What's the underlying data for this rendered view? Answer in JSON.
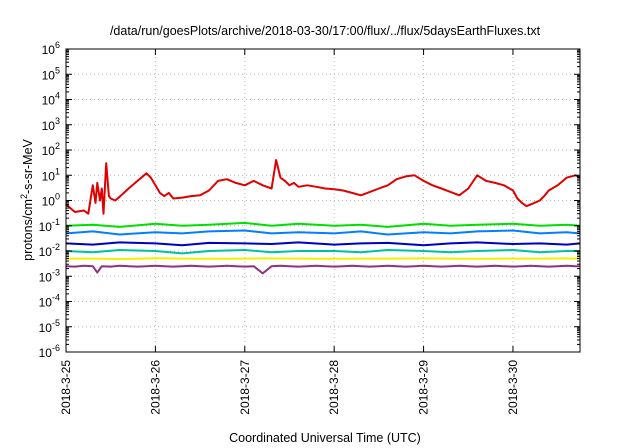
{
  "chart_data": {
    "type": "line",
    "title": "/data/run/goesPlots/archive/2018-03-30/17:00/flux/../flux/5daysEarthFluxes.txt",
    "xlabel": "Coordinated Universal Time (UTC)",
    "ylabel": "protons/cm²-s-sr-MeV",
    "ylabel_parts": {
      "pre": "protons/cm",
      "sup": "2",
      "post": "-s-sr-MeV"
    },
    "yscale": "log",
    "ylim": [
      1e-06,
      1000000.0
    ],
    "xlim_days": [
      0,
      5.75
    ],
    "grid": true,
    "legend": "none",
    "x_ticks": [
      {
        "day": 0,
        "label": "2018-3-25"
      },
      {
        "day": 1,
        "label": "2018-3-26"
      },
      {
        "day": 2,
        "label": "2018-3-27"
      },
      {
        "day": 3,
        "label": "2018-3-28"
      },
      {
        "day": 4,
        "label": "2018-3-29"
      },
      {
        "day": 5,
        "label": "2018-3-30"
      }
    ],
    "y_ticks": [
      {
        "exp": -6,
        "base": "10",
        "sup": "-6"
      },
      {
        "exp": -5,
        "base": "10",
        "sup": "-5"
      },
      {
        "exp": -4,
        "base": "10",
        "sup": "-4"
      },
      {
        "exp": -3,
        "base": "10",
        "sup": "-3"
      },
      {
        "exp": -2,
        "base": "10",
        "sup": "-2"
      },
      {
        "exp": -1,
        "base": "10",
        "sup": "-1"
      },
      {
        "exp": 0,
        "base": "10",
        "sup": "0"
      },
      {
        "exp": 1,
        "base": "10",
        "sup": "1"
      },
      {
        "exp": 2,
        "base": "10",
        "sup": "2"
      },
      {
        "exp": 3,
        "base": "10",
        "sup": "3"
      },
      {
        "exp": 4,
        "base": "10",
        "sup": "4"
      },
      {
        "exp": 5,
        "base": "10",
        "sup": "5"
      },
      {
        "exp": 6,
        "base": "10",
        "sup": "6"
      }
    ],
    "series": [
      {
        "color": "#e00000",
        "x": [
          0,
          0.1,
          0.2,
          0.25,
          0.3,
          0.33,
          0.35,
          0.38,
          0.4,
          0.42,
          0.45,
          0.48,
          0.5,
          0.55,
          0.6,
          0.7,
          0.8,
          0.9,
          0.95,
          1.0,
          1.05,
          1.1,
          1.15,
          1.2,
          1.3,
          1.4,
          1.5,
          1.6,
          1.7,
          1.8,
          1.9,
          2.0,
          2.1,
          2.2,
          2.3,
          2.35,
          2.4,
          2.45,
          2.5,
          2.55,
          2.6,
          2.7,
          2.8,
          2.9,
          3.0,
          3.1,
          3.2,
          3.3,
          3.4,
          3.5,
          3.6,
          3.7,
          3.8,
          3.9,
          4.0,
          4.1,
          4.2,
          4.3,
          4.4,
          4.5,
          4.6,
          4.7,
          4.8,
          4.9,
          5.0,
          5.05,
          5.1,
          5.15,
          5.2,
          5.3,
          5.35,
          5.4,
          5.5,
          5.6,
          5.7,
          5.75
        ],
        "y": [
          0.7,
          0.35,
          0.4,
          0.3,
          4,
          0.8,
          5,
          1,
          3,
          0.3,
          30,
          1.5,
          1.2,
          1,
          1.4,
          3,
          6,
          12,
          8,
          4,
          2,
          1.5,
          2,
          1.2,
          1.3,
          1.5,
          1.6,
          2.5,
          6,
          7,
          5,
          4,
          6,
          4,
          3,
          40,
          8,
          6,
          4,
          5,
          3.5,
          4,
          3.5,
          3,
          2.8,
          2.5,
          2,
          1.6,
          2.2,
          3,
          4,
          7,
          9,
          10,
          6,
          4,
          3,
          2.2,
          1.6,
          3,
          10,
          6,
          5,
          4,
          2.5,
          1.2,
          0.8,
          0.6,
          0.7,
          1,
          1.5,
          2.5,
          4,
          8,
          10,
          8
        ]
      },
      {
        "color": "#00e000",
        "x": [
          0,
          0.3,
          0.6,
          1.0,
          1.3,
          1.6,
          2.0,
          2.3,
          2.6,
          3.0,
          3.3,
          3.6,
          4.0,
          4.3,
          4.6,
          5.0,
          5.3,
          5.6,
          5.75
        ],
        "y": [
          0.1,
          0.11,
          0.09,
          0.12,
          0.1,
          0.11,
          0.13,
          0.1,
          0.12,
          0.1,
          0.11,
          0.09,
          0.12,
          0.1,
          0.11,
          0.12,
          0.1,
          0.11,
          0.1
        ]
      },
      {
        "color": "#0080ff",
        "x": [
          0,
          0.3,
          0.6,
          1.0,
          1.3,
          1.6,
          2.0,
          2.3,
          2.6,
          3.0,
          3.3,
          3.6,
          4.0,
          4.3,
          4.6,
          5.0,
          5.3,
          5.6,
          5.75
        ],
        "y": [
          0.05,
          0.06,
          0.045,
          0.055,
          0.05,
          0.06,
          0.065,
          0.05,
          0.055,
          0.05,
          0.06,
          0.045,
          0.055,
          0.05,
          0.06,
          0.065,
          0.05,
          0.055,
          0.05
        ]
      },
      {
        "color": "#0000c0",
        "x": [
          0,
          0.3,
          0.6,
          1.0,
          1.3,
          1.6,
          2.0,
          2.3,
          2.6,
          3.0,
          3.3,
          3.6,
          4.0,
          4.3,
          4.6,
          5.0,
          5.3,
          5.6,
          5.75
        ],
        "y": [
          0.02,
          0.018,
          0.022,
          0.02,
          0.017,
          0.021,
          0.02,
          0.019,
          0.022,
          0.018,
          0.02,
          0.021,
          0.017,
          0.02,
          0.022,
          0.019,
          0.02,
          0.018,
          0.02
        ]
      },
      {
        "color": "#00c0a0",
        "x": [
          0,
          0.3,
          0.6,
          1.0,
          1.3,
          1.6,
          2.0,
          2.3,
          2.6,
          3.0,
          3.3,
          3.6,
          4.0,
          4.3,
          4.6,
          5.0,
          5.3,
          5.6,
          5.75
        ],
        "y": [
          0.01,
          0.009,
          0.011,
          0.01,
          0.008,
          0.01,
          0.011,
          0.009,
          0.01,
          0.01,
          0.009,
          0.011,
          0.01,
          0.009,
          0.01,
          0.011,
          0.009,
          0.01,
          0.01
        ]
      },
      {
        "color": "#f0f000",
        "x": [
          0,
          0.3,
          0.6,
          1.0,
          1.3,
          1.6,
          2.0,
          2.3,
          2.6,
          3.0,
          3.3,
          3.6,
          4.0,
          4.3,
          4.6,
          5.0,
          5.3,
          5.6,
          5.75
        ],
        "y": [
          0.005,
          0.005,
          0.0048,
          0.0052,
          0.005,
          0.0049,
          0.005,
          0.0051,
          0.005,
          0.0049,
          0.005,
          0.005,
          0.0051,
          0.005,
          0.0049,
          0.005,
          0.005,
          0.0051,
          0.005
        ]
      },
      {
        "color": "#903080",
        "x": [
          0,
          0.1,
          0.2,
          0.3,
          0.35,
          0.4,
          0.5,
          0.6,
          0.7,
          0.8,
          0.9,
          1.0,
          1.1,
          1.2,
          1.3,
          1.4,
          1.5,
          1.6,
          1.7,
          1.8,
          1.9,
          2.0,
          2.1,
          2.2,
          2.3,
          2.4,
          2.5,
          2.6,
          2.7,
          2.8,
          2.9,
          3.0,
          3.1,
          3.2,
          3.3,
          3.4,
          3.5,
          3.6,
          3.7,
          3.8,
          3.9,
          4.0,
          4.1,
          4.2,
          4.3,
          4.4,
          4.5,
          4.6,
          4.7,
          4.8,
          4.9,
          5.0,
          5.1,
          5.2,
          5.3,
          5.4,
          5.5,
          5.6,
          5.7,
          5.75
        ],
        "y": [
          0.0025,
          0.0024,
          0.0026,
          0.0025,
          0.0014,
          0.0025,
          0.0024,
          0.0026,
          0.0025,
          0.0024,
          0.0025,
          0.0026,
          0.0025,
          0.0024,
          0.0025,
          0.0026,
          0.0025,
          0.0024,
          0.0025,
          0.0026,
          0.0025,
          0.0024,
          0.0025,
          0.0013,
          0.0025,
          0.0026,
          0.0025,
          0.0024,
          0.0025,
          0.0026,
          0.0025,
          0.0024,
          0.0025,
          0.0026,
          0.0025,
          0.0024,
          0.0025,
          0.0026,
          0.0025,
          0.0024,
          0.0025,
          0.0026,
          0.0025,
          0.0024,
          0.0025,
          0.0026,
          0.0025,
          0.0024,
          0.0025,
          0.0026,
          0.0025,
          0.0024,
          0.0025,
          0.0026,
          0.0025,
          0.0024,
          0.0025,
          0.0026,
          0.0025,
          0.0025
        ]
      }
    ]
  }
}
